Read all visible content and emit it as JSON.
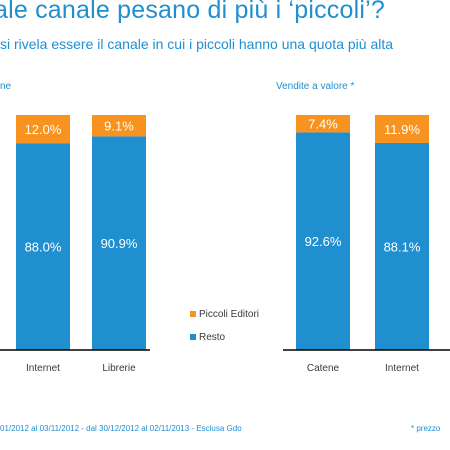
{
  "header": {
    "title": "ale canale pesano di più i ‘piccoli’?",
    "subtitle": "si rivela essere il canale in cui i piccoli hanno una quota più alta"
  },
  "footer": {
    "note_left": "01/2012 al 03/11/2012 - dal 30/12/2012 al 02/11/2013 -  Esclusa Gdo",
    "note_right": "* prezzo"
  },
  "chart_data": [
    {
      "type": "bar",
      "stacked": true,
      "panel_label": "ne",
      "categories": [
        "Internet",
        "Librerie"
      ],
      "ylim": [
        0,
        100
      ],
      "series": [
        {
          "name": "Resto",
          "values": [
            88.0,
            90.9
          ],
          "labels": [
            "88.0%",
            "90.9%"
          ],
          "color": "#1f8fd0"
        },
        {
          "name": "Piccoli Editori",
          "values": [
            12.0,
            9.1
          ],
          "labels": [
            "12.0%",
            "9.1%"
          ],
          "color": "#f7931e"
        }
      ],
      "legend": {
        "placement": "right",
        "entries": [
          {
            "label": "Piccoli Editori",
            "color": "#f7931e"
          },
          {
            "label": "Resto",
            "color": "#1f8fd0"
          }
        ]
      }
    },
    {
      "type": "bar",
      "stacked": true,
      "panel_label": "Vendite a valore *",
      "categories": [
        "Catene",
        "Internet"
      ],
      "ylim": [
        0,
        100
      ],
      "series": [
        {
          "name": "Resto",
          "values": [
            92.6,
            88.1
          ],
          "labels": [
            "92.6%",
            "88.1%"
          ],
          "color": "#1f8fd0"
        },
        {
          "name": "Piccoli Editori",
          "values": [
            7.4,
            11.9
          ],
          "labels": [
            "7.4%",
            "11.9%"
          ],
          "color": "#f7931e"
        }
      ]
    }
  ]
}
